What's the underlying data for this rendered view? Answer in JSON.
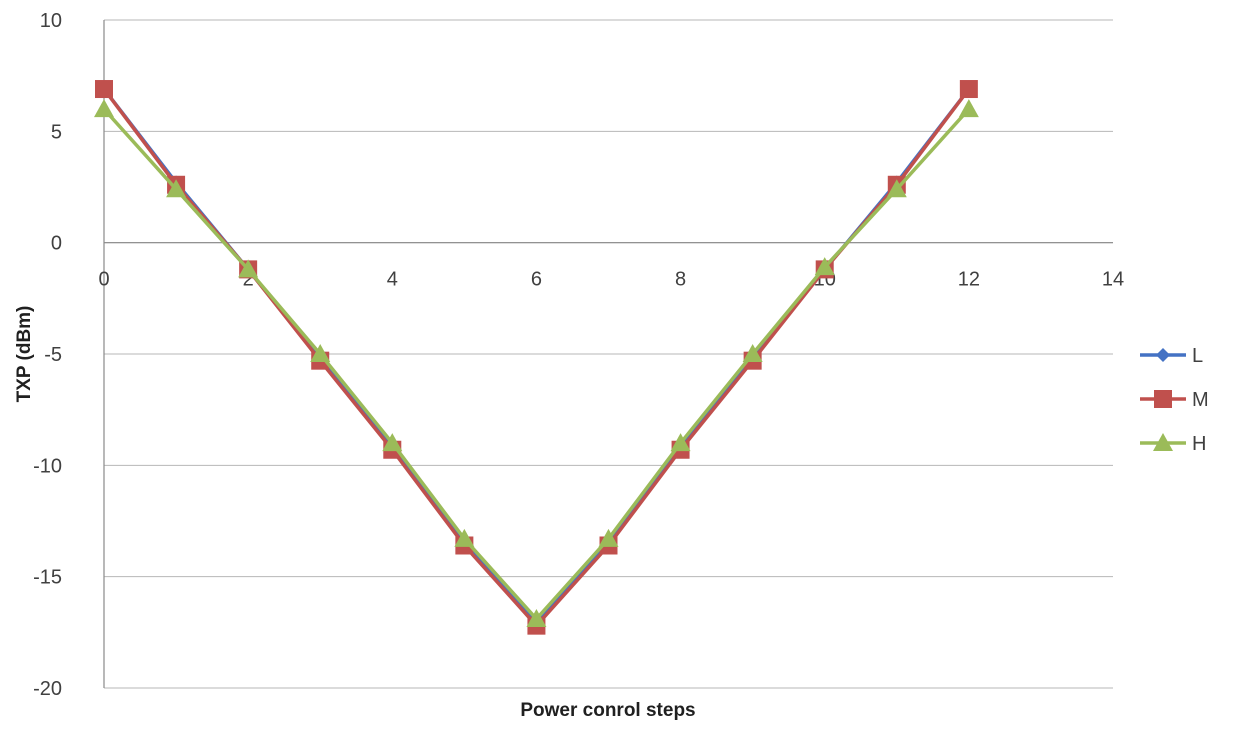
{
  "chart_data": {
    "type": "line",
    "title": "",
    "xlabel": "Power conrol steps",
    "ylabel": "TXP (dBm)",
    "xlim": [
      0,
      14
    ],
    "ylim": [
      -20,
      10
    ],
    "x_ticks": [
      "0",
      "2",
      "4",
      "6",
      "8",
      "10",
      "12",
      "14"
    ],
    "y_ticks": [
      "10",
      "5",
      "0",
      "-5",
      "-10",
      "-15",
      "-20"
    ],
    "x_tick_values": [
      0,
      2,
      4,
      6,
      8,
      10,
      12,
      14
    ],
    "y_tick_values": [
      10,
      5,
      0,
      -5,
      -10,
      -15,
      -20
    ],
    "grid": "horizontal",
    "legend_position": "right",
    "x": [
      0,
      1,
      2,
      3,
      4,
      5,
      6,
      7,
      8,
      9,
      10,
      11,
      12
    ],
    "series": [
      {
        "name": "L",
        "color": "#4472c4",
        "marker": "diamond",
        "values": [
          6.9,
          2.7,
          -1.2,
          -5.2,
          -9.2,
          -13.5,
          -17.1,
          -13.5,
          -9.2,
          -5.2,
          -1.2,
          2.7,
          6.9
        ]
      },
      {
        "name": "M",
        "color": "#c0504d",
        "marker": "square",
        "values": [
          6.9,
          2.6,
          -1.2,
          -5.3,
          -9.3,
          -13.6,
          -17.2,
          -13.6,
          -9.3,
          -5.3,
          -1.2,
          2.6,
          6.9
        ]
      },
      {
        "name": "H",
        "color": "#9bbb59",
        "marker": "triangle",
        "values": [
          6.0,
          2.4,
          -1.2,
          -5.0,
          -9.0,
          -13.3,
          -16.9,
          -13.3,
          -9.0,
          -5.0,
          -1.1,
          2.4,
          6.0
        ]
      }
    ]
  }
}
